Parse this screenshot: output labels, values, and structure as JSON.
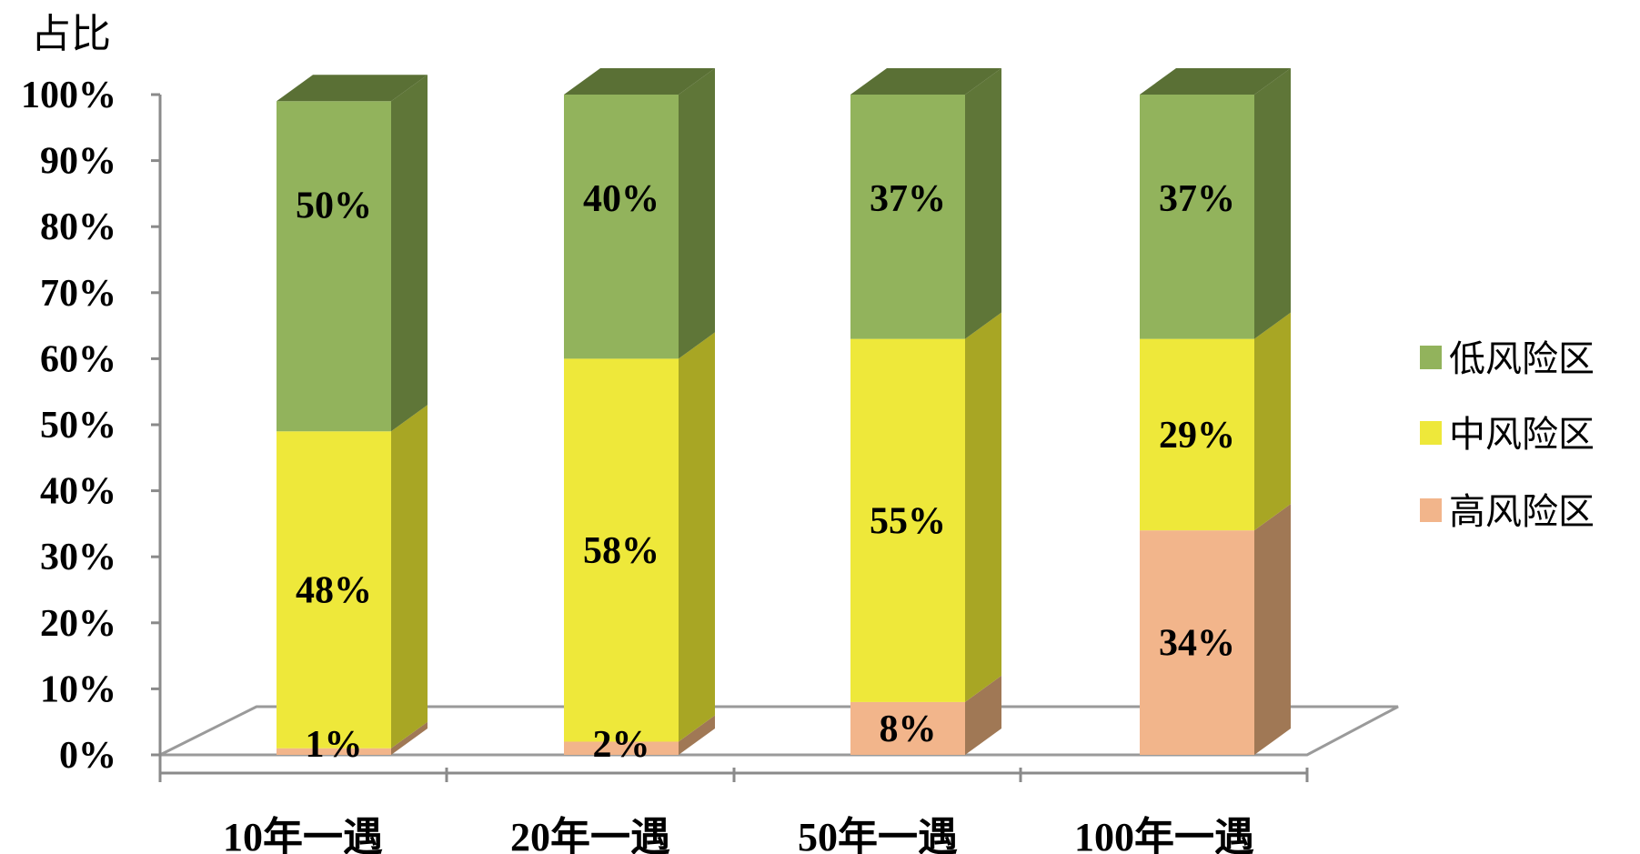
{
  "chart_data": {
    "type": "bar",
    "stacked": true,
    "three_d": true,
    "ylabel": "占比",
    "xlabel": "",
    "ylim": [
      0,
      100
    ],
    "y_ticks": [
      "0%",
      "10%",
      "20%",
      "30%",
      "40%",
      "50%",
      "60%",
      "70%",
      "80%",
      "90%",
      "100%"
    ],
    "categories": [
      "10年一遇",
      "20年一遇",
      "50年一遇",
      "100年一遇"
    ],
    "series": [
      {
        "name": "高风险区",
        "values": [
          1,
          2,
          8,
          34
        ],
        "labels": [
          "1%",
          "2%",
          "8%",
          "34%"
        ],
        "color": "#f2b58b",
        "side_color": "#a07855"
      },
      {
        "name": "中风险区",
        "values": [
          48,
          58,
          55,
          29
        ],
        "labels": [
          "48%",
          "58%",
          "55%",
          "29%"
        ],
        "color": "#eee83a",
        "side_color": "#a8a624"
      },
      {
        "name": "低风险区",
        "values": [
          50,
          40,
          37,
          37
        ],
        "labels": [
          "50%",
          "40%",
          "37%",
          "37%"
        ],
        "color": "#92b35c",
        "side_color": "#5f7638"
      }
    ],
    "legend_order": [
      "低风险区",
      "中风险区",
      "高风险区"
    ],
    "legend_position": "right",
    "grid": false
  }
}
